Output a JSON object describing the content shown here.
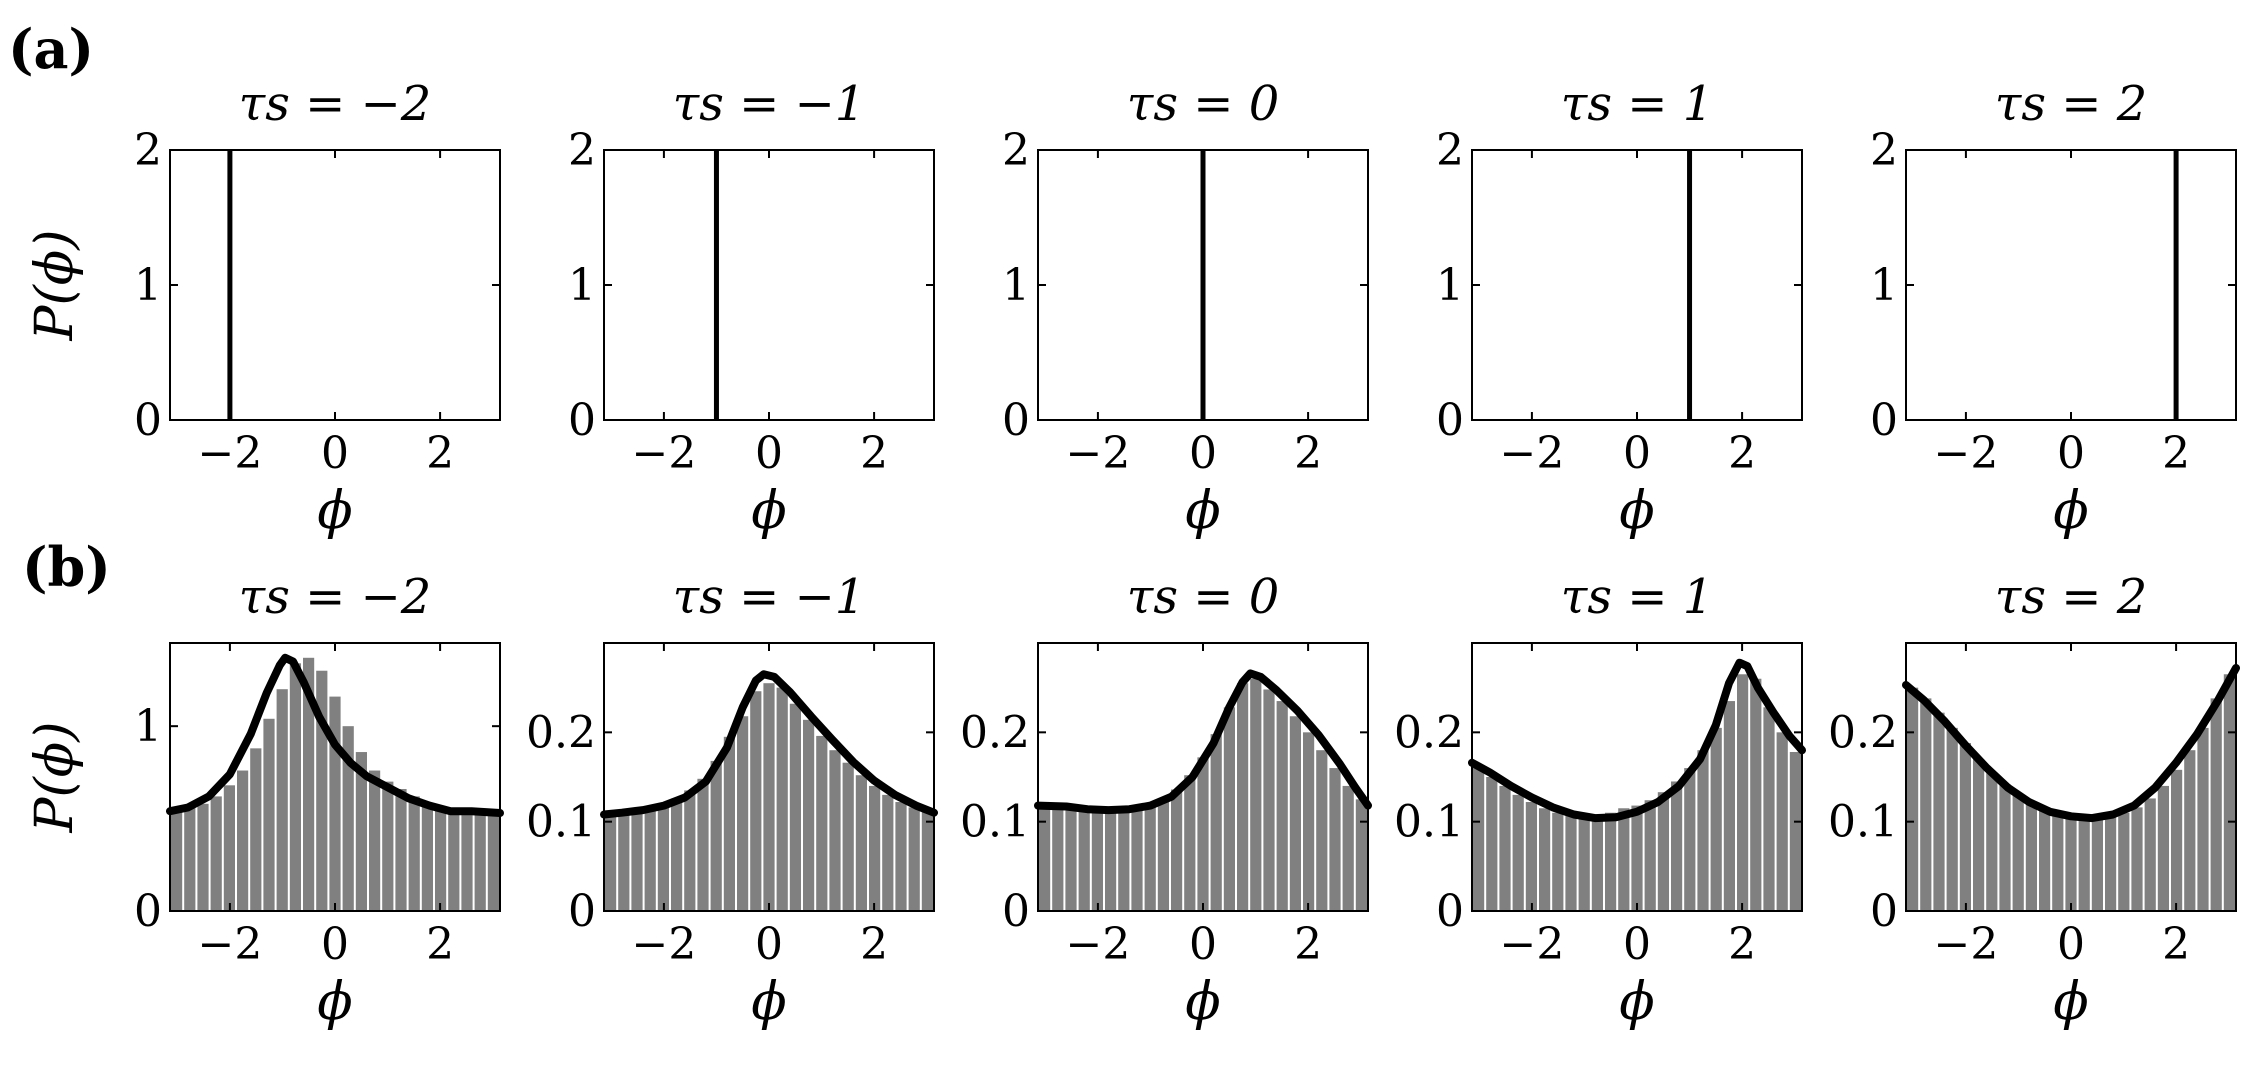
{
  "figure": {
    "row_labels": [
      "(a)",
      "(b)"
    ],
    "ylabel": "P(ϕ)",
    "xlabel": "ϕ"
  },
  "colors": {
    "bar": "#808080",
    "line": "#000000",
    "axes": "#000000"
  },
  "chart_data": [
    {
      "row": "a",
      "type": "line",
      "title": "τs = −2",
      "xlabel": "ϕ",
      "ylabel": "P(ϕ)",
      "xlim": [
        -3.14,
        3.14
      ],
      "ylim": [
        0,
        2
      ],
      "xticks": [
        "−2",
        "0",
        "2"
      ],
      "xtick_values": [
        -2,
        0,
        2
      ],
      "yticks": [
        "0",
        "1",
        "2"
      ],
      "ytick_values": [
        0,
        1,
        2
      ],
      "delta_at": -2,
      "bars": [],
      "curve": []
    },
    {
      "row": "a",
      "type": "line",
      "title": "τs = −1",
      "xlabel": "ϕ",
      "ylabel": "",
      "xlim": [
        -3.14,
        3.14
      ],
      "ylim": [
        0,
        2
      ],
      "xticks": [
        "−2",
        "0",
        "2"
      ],
      "xtick_values": [
        -2,
        0,
        2
      ],
      "yticks": [
        "0",
        "1",
        "2"
      ],
      "ytick_values": [
        0,
        1,
        2
      ],
      "delta_at": -1,
      "bars": [],
      "curve": []
    },
    {
      "row": "a",
      "type": "line",
      "title": "τs = 0",
      "xlabel": "ϕ",
      "ylabel": "",
      "xlim": [
        -3.14,
        3.14
      ],
      "ylim": [
        0,
        2
      ],
      "xticks": [
        "−2",
        "0",
        "2"
      ],
      "xtick_values": [
        -2,
        0,
        2
      ],
      "yticks": [
        "0",
        "1",
        "2"
      ],
      "ytick_values": [
        0,
        1,
        2
      ],
      "delta_at": 0,
      "bars": [],
      "curve": []
    },
    {
      "row": "a",
      "type": "line",
      "title": "τs = 1",
      "xlabel": "ϕ",
      "ylabel": "",
      "xlim": [
        -3.14,
        3.14
      ],
      "ylim": [
        0,
        2
      ],
      "xticks": [
        "−2",
        "0",
        "2"
      ],
      "xtick_values": [
        -2,
        0,
        2
      ],
      "yticks": [
        "0",
        "1",
        "2"
      ],
      "ytick_values": [
        0,
        1,
        2
      ],
      "delta_at": 1,
      "bars": [],
      "curve": []
    },
    {
      "row": "a",
      "type": "line",
      "title": "τs = 2",
      "xlabel": "ϕ",
      "ylabel": "",
      "xlim": [
        -3.14,
        3.14
      ],
      "ylim": [
        0,
        2
      ],
      "xticks": [
        "−2",
        "0",
        "2"
      ],
      "xtick_values": [
        -2,
        0,
        2
      ],
      "yticks": [
        "0",
        "1",
        "2"
      ],
      "ytick_values": [
        0,
        1,
        2
      ],
      "delta_at": 2,
      "bars": [],
      "curve": []
    },
    {
      "row": "b",
      "type": "bar",
      "title": "τs = −2",
      "xlabel": "ϕ",
      "ylabel": "P(ϕ)",
      "xlim": [
        -3.14,
        3.14
      ],
      "ylim": [
        0,
        1.45
      ],
      "xticks": [
        "−2",
        "0",
        "2"
      ],
      "xtick_values": [
        -2,
        0,
        2
      ],
      "yticks": [
        "0",
        "1"
      ],
      "ytick_values": [
        0,
        1
      ],
      "bars": [
        0.54,
        0.56,
        0.58,
        0.62,
        0.68,
        0.76,
        0.88,
        1.04,
        1.2,
        1.34,
        1.37,
        1.3,
        1.16,
        1.0,
        0.86,
        0.76,
        0.7,
        0.66,
        0.62,
        0.58,
        0.56,
        0.54,
        0.54,
        0.54,
        0.53
      ],
      "curve": [
        [
          -3.14,
          0.54
        ],
        [
          -2.8,
          0.56
        ],
        [
          -2.4,
          0.62
        ],
        [
          -2.0,
          0.74
        ],
        [
          -1.6,
          0.96
        ],
        [
          -1.3,
          1.18
        ],
        [
          -1.05,
          1.33
        ],
        [
          -0.95,
          1.37
        ],
        [
          -0.8,
          1.35
        ],
        [
          -0.6,
          1.24
        ],
        [
          -0.3,
          1.05
        ],
        [
          0,
          0.9
        ],
        [
          0.3,
          0.8
        ],
        [
          0.6,
          0.73
        ],
        [
          1.0,
          0.67
        ],
        [
          1.4,
          0.61
        ],
        [
          1.8,
          0.57
        ],
        [
          2.2,
          0.54
        ],
        [
          2.6,
          0.54
        ],
        [
          3.14,
          0.53
        ]
      ]
    },
    {
      "row": "b",
      "type": "bar",
      "title": "τs = −1",
      "xlabel": "ϕ",
      "ylabel": "",
      "xlim": [
        -3.14,
        3.14
      ],
      "ylim": [
        0,
        0.3
      ],
      "xticks": [
        "−2",
        "0",
        "2"
      ],
      "xtick_values": [
        -2,
        0,
        2
      ],
      "yticks": [
        "0",
        "0.1",
        "0.2"
      ],
      "ytick_values": [
        0,
        0.1,
        0.2
      ],
      "bars": [
        0.11,
        0.111,
        0.113,
        0.116,
        0.12,
        0.126,
        0.135,
        0.148,
        0.168,
        0.195,
        0.218,
        0.246,
        0.255,
        0.25,
        0.232,
        0.214,
        0.196,
        0.18,
        0.166,
        0.152,
        0.14,
        0.13,
        0.122,
        0.116,
        0.112
      ],
      "curve": [
        [
          -3.14,
          0.108
        ],
        [
          -2.8,
          0.11
        ],
        [
          -2.4,
          0.113
        ],
        [
          -2.0,
          0.118
        ],
        [
          -1.6,
          0.127
        ],
        [
          -1.2,
          0.145
        ],
        [
          -0.8,
          0.183
        ],
        [
          -0.5,
          0.228
        ],
        [
          -0.25,
          0.258
        ],
        [
          -0.1,
          0.265
        ],
        [
          0.1,
          0.262
        ],
        [
          0.4,
          0.245
        ],
        [
          0.8,
          0.218
        ],
        [
          1.2,
          0.192
        ],
        [
          1.6,
          0.167
        ],
        [
          2.0,
          0.146
        ],
        [
          2.4,
          0.13
        ],
        [
          2.8,
          0.118
        ],
        [
          3.14,
          0.11
        ]
      ]
    },
    {
      "row": "b",
      "type": "bar",
      "title": "τs = 0",
      "xlabel": "ϕ",
      "ylabel": "",
      "xlim": [
        -3.14,
        3.14
      ],
      "ylim": [
        0,
        0.3
      ],
      "xticks": [
        "−2",
        "0",
        "2"
      ],
      "xtick_values": [
        -2,
        0,
        2
      ],
      "yticks": [
        "0",
        "0.1",
        "0.2"
      ],
      "ytick_values": [
        0,
        0.1,
        0.2
      ],
      "bars": [
        0.116,
        0.116,
        0.115,
        0.114,
        0.113,
        0.113,
        0.114,
        0.116,
        0.12,
        0.126,
        0.136,
        0.152,
        0.172,
        0.198,
        0.228,
        0.255,
        0.26,
        0.248,
        0.235,
        0.218,
        0.2,
        0.18,
        0.16,
        0.14,
        0.125
      ],
      "curve": [
        [
          -3.14,
          0.118
        ],
        [
          -2.6,
          0.117
        ],
        [
          -2.2,
          0.114
        ],
        [
          -1.8,
          0.113
        ],
        [
          -1.4,
          0.114
        ],
        [
          -1.0,
          0.118
        ],
        [
          -0.6,
          0.128
        ],
        [
          -0.2,
          0.15
        ],
        [
          0.2,
          0.188
        ],
        [
          0.5,
          0.228
        ],
        [
          0.75,
          0.256
        ],
        [
          0.9,
          0.266
        ],
        [
          1.1,
          0.262
        ],
        [
          1.4,
          0.247
        ],
        [
          1.8,
          0.224
        ],
        [
          2.2,
          0.197
        ],
        [
          2.6,
          0.165
        ],
        [
          2.9,
          0.138
        ],
        [
          3.14,
          0.118
        ]
      ]
    },
    {
      "row": "b",
      "type": "bar",
      "title": "τs = 1",
      "xlabel": "ϕ",
      "ylabel": "",
      "xlim": [
        -3.14,
        3.14
      ],
      "ylim": [
        0,
        0.3
      ],
      "xticks": [
        "−2",
        "0",
        "2"
      ],
      "xtick_values": [
        -2,
        0,
        2
      ],
      "yticks": [
        "0",
        "0.1",
        "0.2"
      ],
      "ytick_values": [
        0,
        0.1,
        0.2
      ],
      "bars": [
        0.16,
        0.15,
        0.14,
        0.13,
        0.122,
        0.115,
        0.11,
        0.108,
        0.108,
        0.106,
        0.11,
        0.115,
        0.118,
        0.124,
        0.133,
        0.145,
        0.16,
        0.18,
        0.205,
        0.235,
        0.265,
        0.26,
        0.228,
        0.2,
        0.178
      ],
      "curve": [
        [
          -3.14,
          0.166
        ],
        [
          -2.8,
          0.155
        ],
        [
          -2.4,
          0.14
        ],
        [
          -2.0,
          0.127
        ],
        [
          -1.6,
          0.116
        ],
        [
          -1.2,
          0.108
        ],
        [
          -0.8,
          0.104
        ],
        [
          -0.4,
          0.105
        ],
        [
          0,
          0.111
        ],
        [
          0.4,
          0.122
        ],
        [
          0.8,
          0.14
        ],
        [
          1.2,
          0.17
        ],
        [
          1.5,
          0.208
        ],
        [
          1.75,
          0.255
        ],
        [
          1.95,
          0.278
        ],
        [
          2.1,
          0.274
        ],
        [
          2.3,
          0.25
        ],
        [
          2.6,
          0.222
        ],
        [
          2.9,
          0.196
        ],
        [
          3.14,
          0.18
        ]
      ]
    },
    {
      "row": "b",
      "type": "bar",
      "title": "τs = 2",
      "xlabel": "ϕ",
      "ylabel": "",
      "xlim": [
        -3.14,
        3.14
      ],
      "ylim": [
        0,
        0.3
      ],
      "xticks": [
        "−2",
        "0",
        "2"
      ],
      "xtick_values": [
        -2,
        0,
        2
      ],
      "yticks": [
        "0",
        "0.1",
        "0.2"
      ],
      "ytick_values": [
        0,
        0.1,
        0.2
      ],
      "bars": [
        0.25,
        0.238,
        0.222,
        0.205,
        0.188,
        0.17,
        0.155,
        0.142,
        0.13,
        0.122,
        0.116,
        0.112,
        0.108,
        0.106,
        0.105,
        0.106,
        0.11,
        0.116,
        0.126,
        0.14,
        0.158,
        0.18,
        0.205,
        0.238,
        0.265
      ],
      "curve": [
        [
          -3.14,
          0.253
        ],
        [
          -2.8,
          0.236
        ],
        [
          -2.4,
          0.212
        ],
        [
          -2.0,
          0.185
        ],
        [
          -1.6,
          0.16
        ],
        [
          -1.2,
          0.138
        ],
        [
          -0.8,
          0.122
        ],
        [
          -0.4,
          0.111
        ],
        [
          0,
          0.106
        ],
        [
          0.4,
          0.104
        ],
        [
          0.8,
          0.108
        ],
        [
          1.2,
          0.118
        ],
        [
          1.6,
          0.138
        ],
        [
          2.0,
          0.166
        ],
        [
          2.4,
          0.198
        ],
        [
          2.8,
          0.236
        ],
        [
          3.14,
          0.272
        ]
      ]
    }
  ]
}
